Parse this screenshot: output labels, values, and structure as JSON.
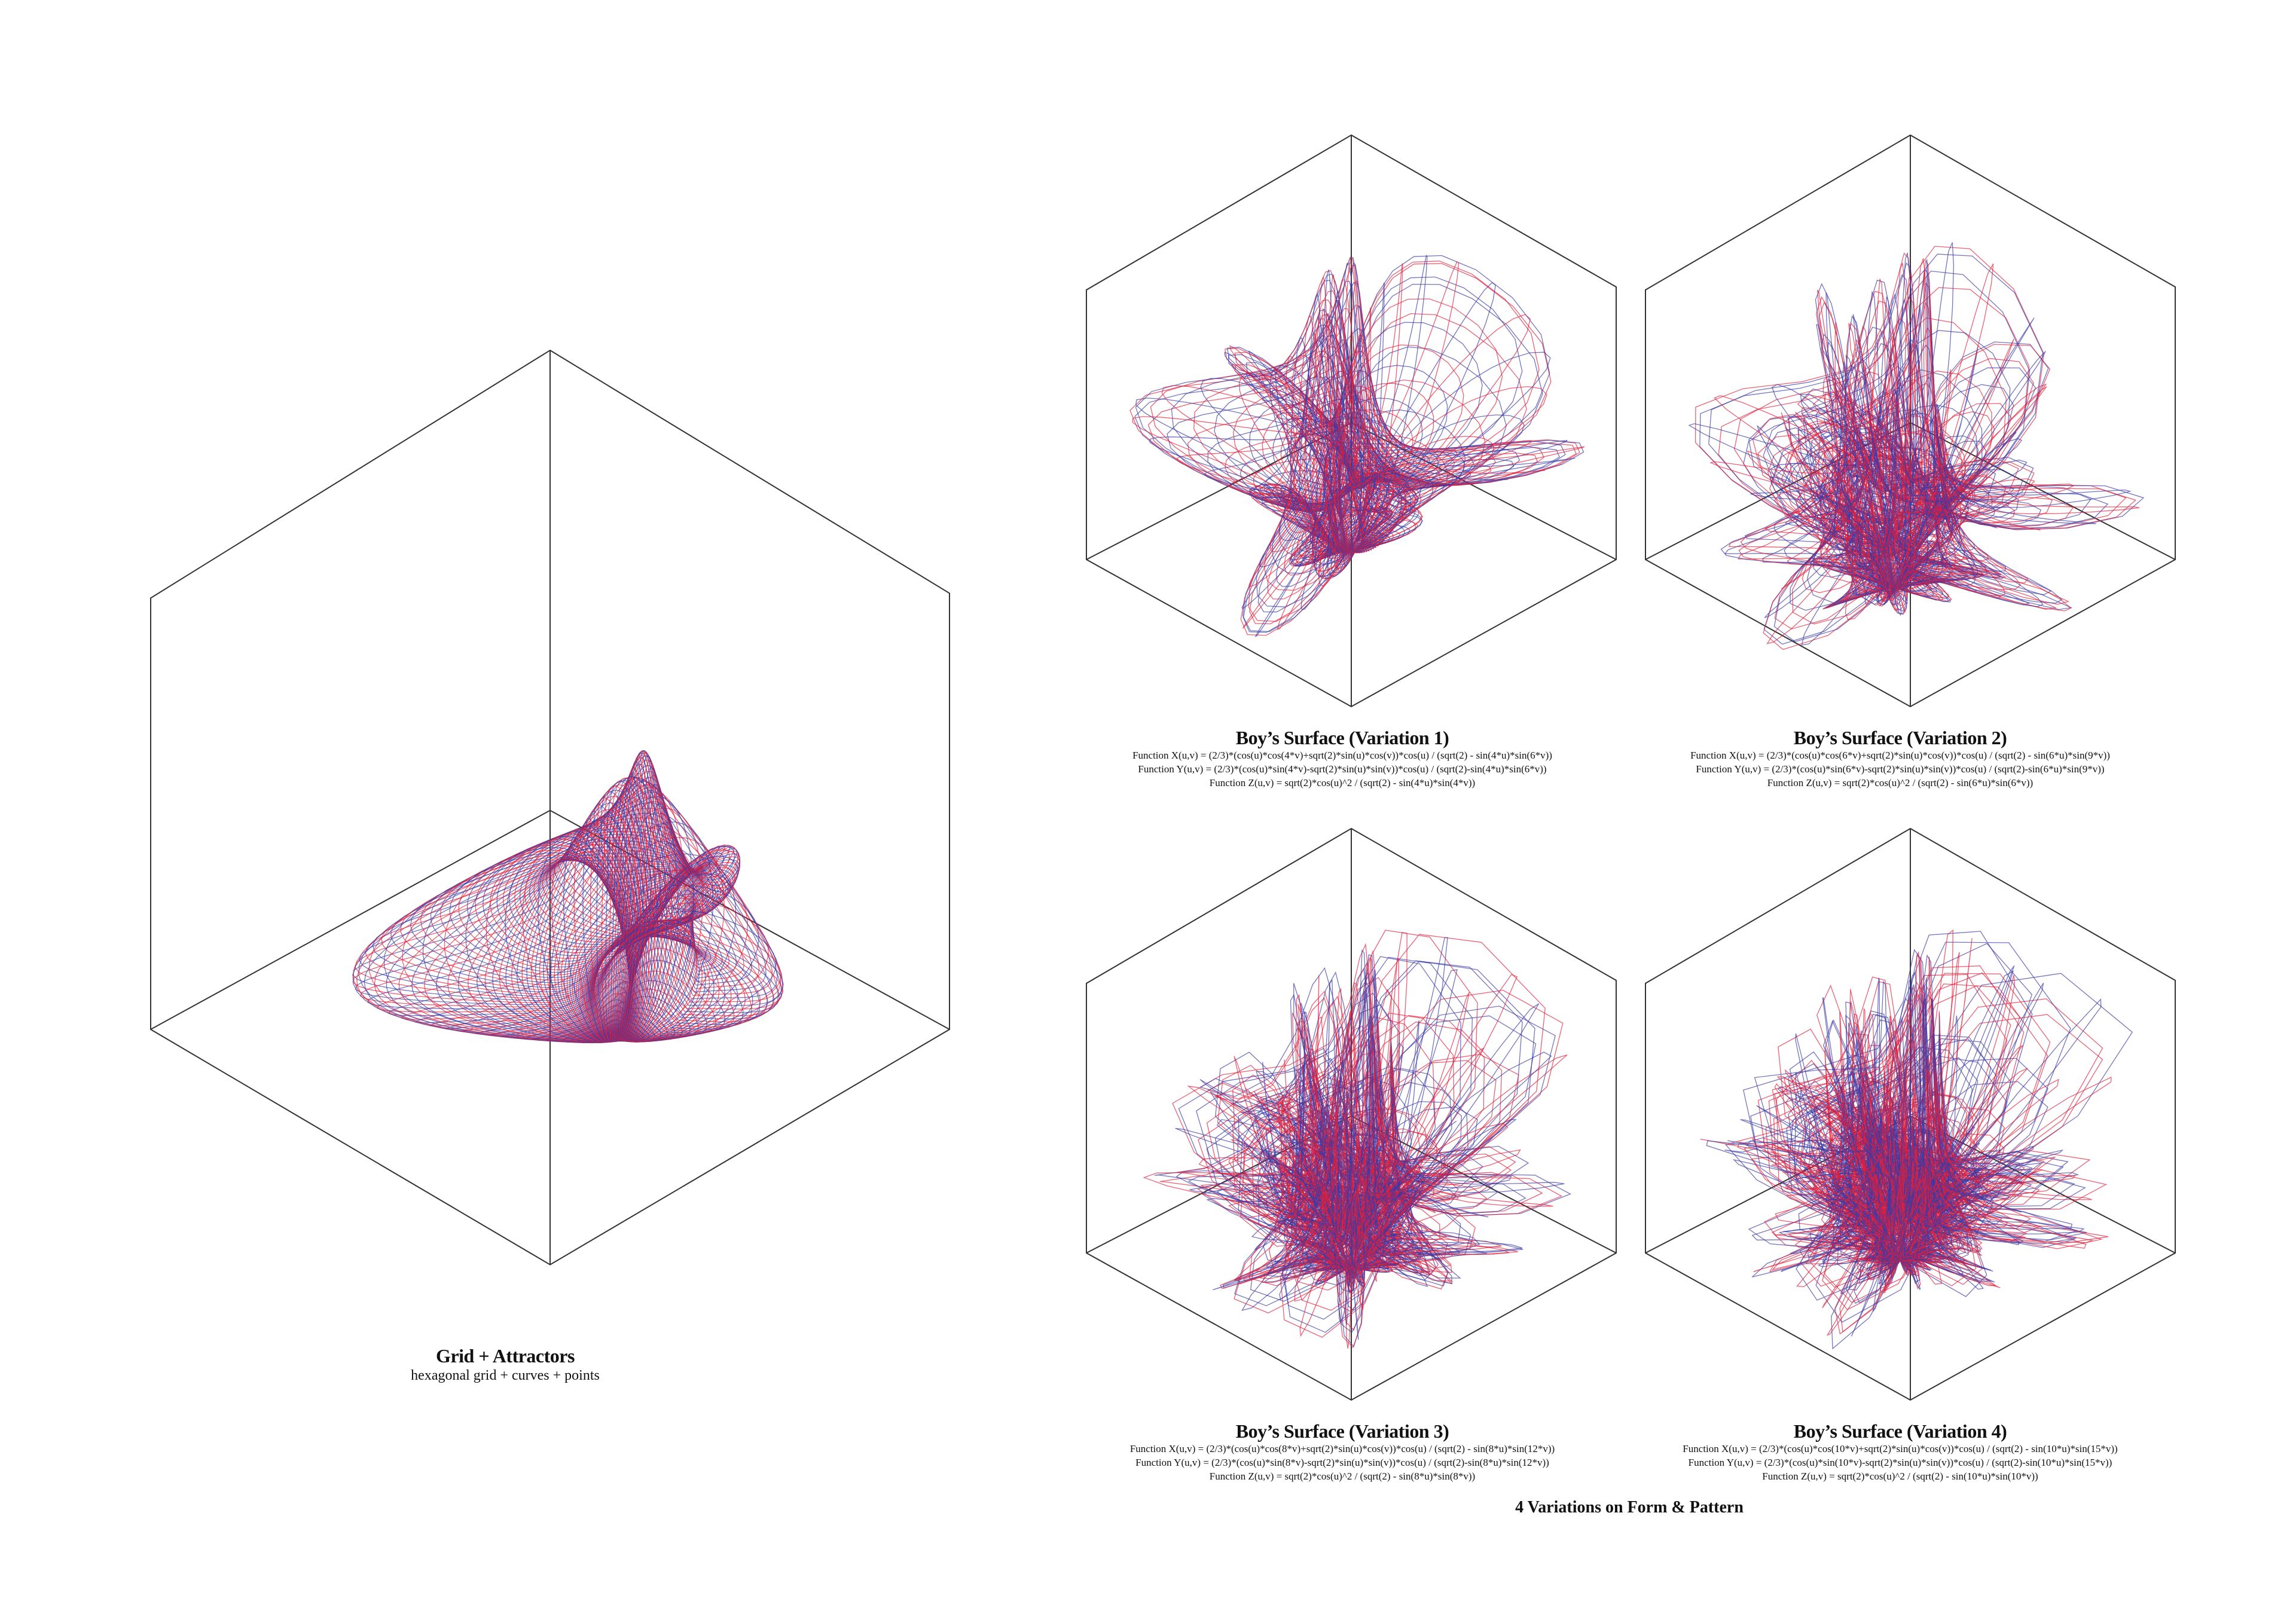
{
  "colors": {
    "red": "#e0203c",
    "blue": "#3b3aa6",
    "frame": "#333333"
  },
  "main_panel": {
    "title": "Grid + Attractors",
    "subtitle": "hexagonal grid + curves + points"
  },
  "variations": [
    {
      "title": "Boy’s Surface (Variation 1)",
      "n": 4,
      "m": 6,
      "fx": "Function X(u,v) = (2/3)*(cos(u)*cos(4*v)+sqrt(2)*sin(u)*cos(v))*cos(u) / (sqrt(2) - sin(4*u)*sin(6*v))",
      "fy": "Function Y(u,v) = (2/3)*(cos(u)*sin(4*v)-sqrt(2)*sin(u)*sin(v))*cos(u) / (sqrt(2)-sin(4*u)*sin(6*v))",
      "fz": "Function Z(u,v) = sqrt(2)*cos(u)^2 / (sqrt(2) - sin(4*u)*sin(4*v))"
    },
    {
      "title": "Boy’s Surface (Variation 2)",
      "n": 6,
      "m": 9,
      "fx": "Function X(u,v) = (2/3)*(cos(u)*cos(6*v)+sqrt(2)*sin(u)*cos(v))*cos(u) / (sqrt(2) - sin(6*u)*sin(9*v))",
      "fy": "Function Y(u,v) = (2/3)*(cos(u)*sin(6*v)-sqrt(2)*sin(u)*sin(v))*cos(u) / (sqrt(2)-sin(6*u)*sin(9*v))",
      "fz": "Function Z(u,v) = sqrt(2)*cos(u)^2 / (sqrt(2) - sin(6*u)*sin(6*v))"
    },
    {
      "title": "Boy’s Surface (Variation 3)",
      "n": 8,
      "m": 12,
      "fx": "Function X(u,v) = (2/3)*(cos(u)*cos(8*v)+sqrt(2)*sin(u)*cos(v))*cos(u) / (sqrt(2) - sin(8*u)*sin(12*v))",
      "fy": "Function Y(u,v) = (2/3)*(cos(u)*sin(8*v)-sqrt(2)*sin(u)*sin(v))*cos(u) / (sqrt(2)-sin(8*u)*sin(12*v))",
      "fz": "Function Z(u,v) = sqrt(2)*cos(u)^2 / (sqrt(2) - sin(8*u)*sin(8*v))"
    },
    {
      "title": "Boy’s Surface (Variation 4)",
      "n": 10,
      "m": 15,
      "fx": "Function X(u,v) = (2/3)*(cos(u)*cos(10*v)+sqrt(2)*sin(u)*cos(v))*cos(u) / (sqrt(2) - sin(10*u)*sin(15*v))",
      "fy": "Function Y(u,v) = (2/3)*(cos(u)*sin(10*v)-sqrt(2)*sin(u)*sin(v))*cos(u) / (sqrt(2)-sin(10*u)*sin(15*v))",
      "fz": "Function Z(u,v) = sqrt(2)*cos(u)^2 / (sqrt(2) - sin(10*u)*sin(10*v))"
    }
  ],
  "section_title": "4 Variations on Form & Pattern"
}
